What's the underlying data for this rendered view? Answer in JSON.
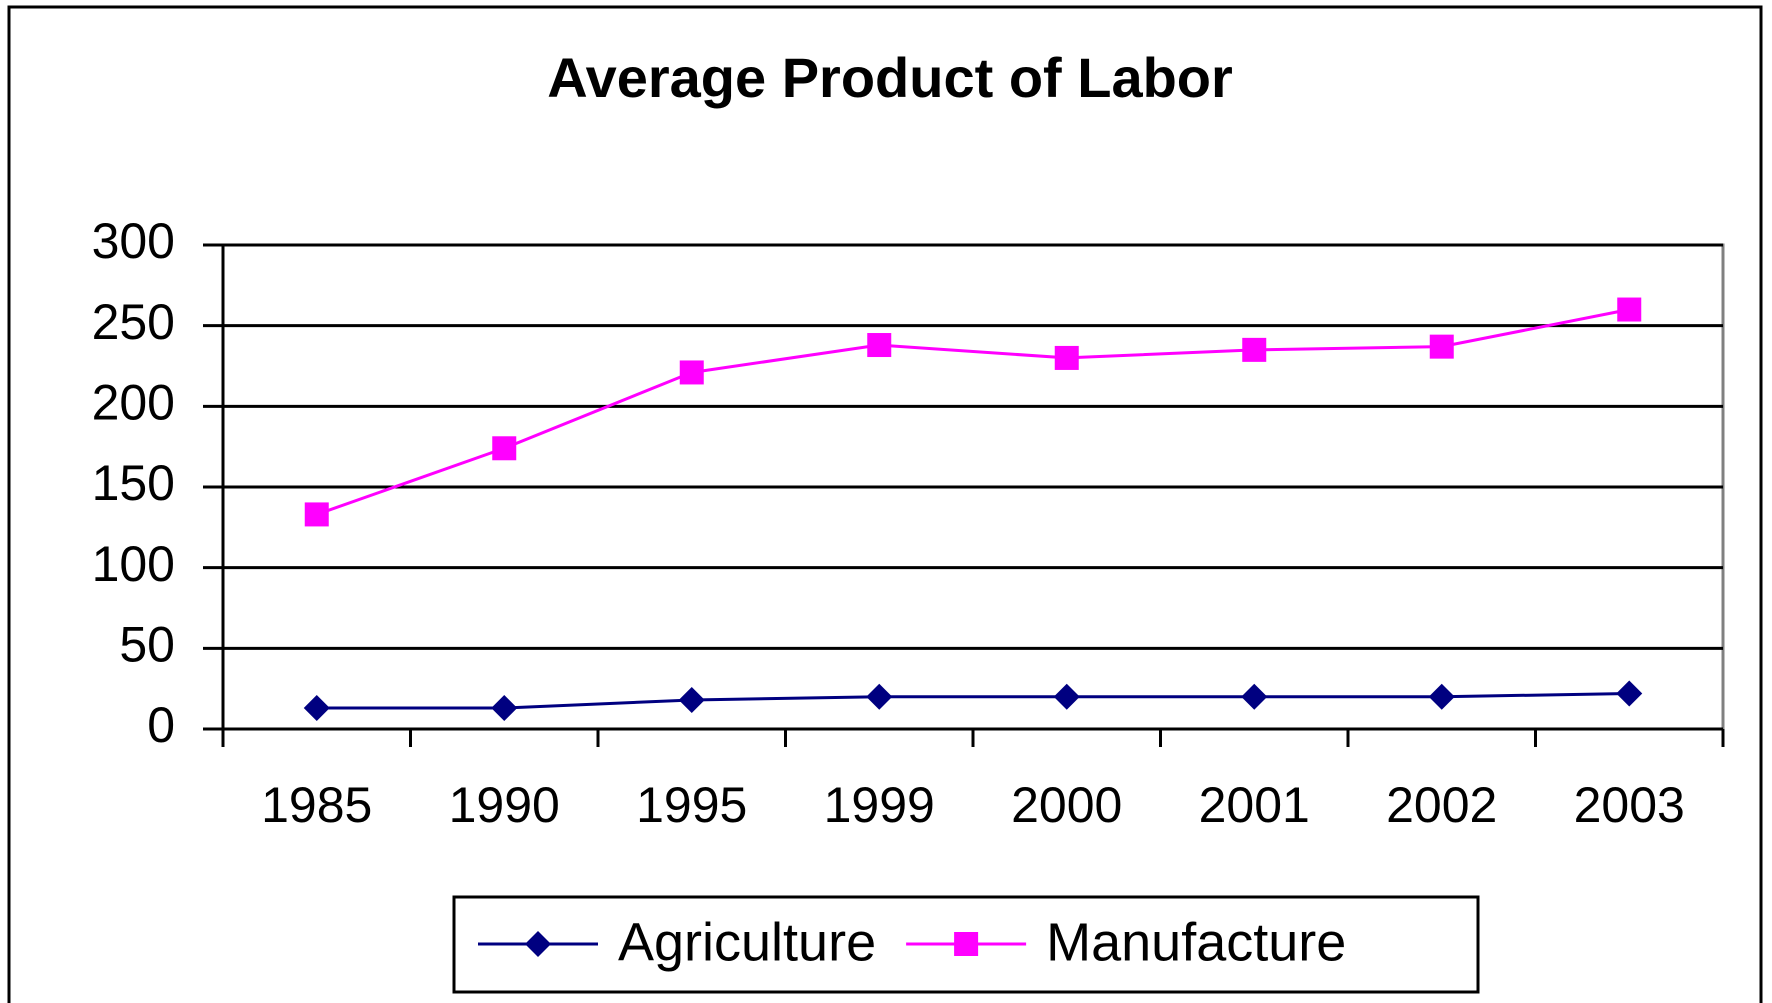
{
  "chart_data": {
    "type": "line",
    "title": "Average Product of Labor",
    "categories": [
      "1985",
      "1990",
      "1995",
      "1999",
      "2000",
      "2001",
      "2002",
      "2003"
    ],
    "series": [
      {
        "name": "Agriculture",
        "color": "#000080",
        "marker": "diamond",
        "values": [
          13,
          13,
          18,
          20,
          20,
          20,
          20,
          22
        ]
      },
      {
        "name": "Manufacture",
        "color": "#ff00ff",
        "marker": "square",
        "values": [
          133,
          174,
          221,
          238,
          230,
          235,
          237,
          260
        ]
      }
    ],
    "ylim": [
      0,
      300
    ],
    "yticks": [
      0,
      50,
      100,
      150,
      200,
      250,
      300
    ],
    "grid": true,
    "legend": "bottom"
  }
}
